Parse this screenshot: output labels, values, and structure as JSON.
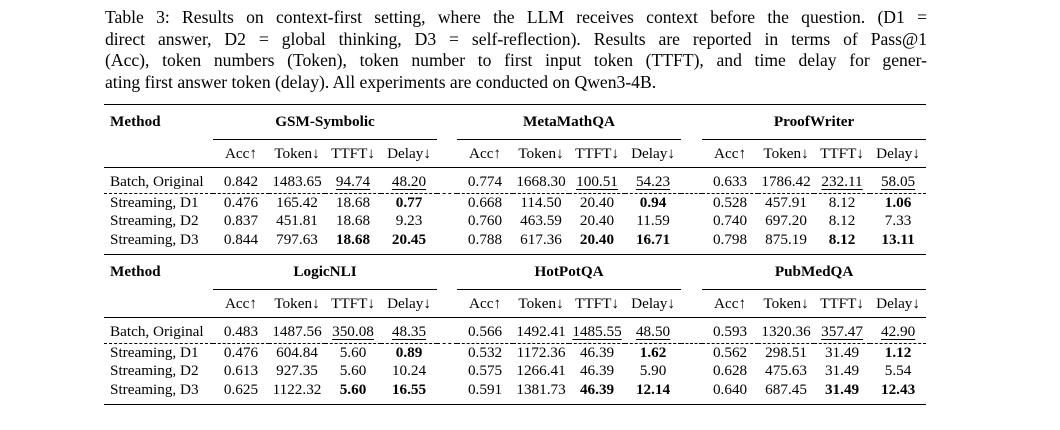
{
  "caption": {
    "lines": [
      "Table 3: Results on context-first setting, where the LLM receives context before the question. (D1 =",
      "direct answer, D2 = global thinking, D3 = self-reflection). Results are reported in terms of Pass@1",
      "(Acc), token numbers (Token), token number to first input token (TTFT), and time delay for gener-",
      "ating first answer token (delay). All experiments are conducted on Qwen3-4B."
    ]
  },
  "tables": [
    {
      "method_label": "Method",
      "groups": [
        "GSM-Symbolic",
        "MetaMathQA",
        "ProofWriter"
      ],
      "metric_headers": [
        "Acc↑",
        "Token↓",
        "TTFT↓",
        "Delay↓"
      ],
      "rows": [
        {
          "method": "Batch, Original",
          "cells": [
            {
              "v": "0.842"
            },
            {
              "v": "1483.65"
            },
            {
              "v": "94.74",
              "u": true
            },
            {
              "v": "48.20",
              "u": true
            },
            {
              "v": "0.774"
            },
            {
              "v": "1668.30"
            },
            {
              "v": "100.51",
              "u": true
            },
            {
              "v": "54.23",
              "u": true
            },
            {
              "v": "0.633"
            },
            {
              "v": "1786.42"
            },
            {
              "v": "232.11",
              "u": true
            },
            {
              "v": "58.05",
              "u": true
            }
          ]
        },
        {
          "method": "Streaming, D1",
          "cells": [
            {
              "v": "0.476"
            },
            {
              "v": "165.42"
            },
            {
              "v": "18.68"
            },
            {
              "v": "0.77",
              "b": true
            },
            {
              "v": "0.668"
            },
            {
              "v": "114.50"
            },
            {
              "v": "20.40"
            },
            {
              "v": "0.94",
              "b": true
            },
            {
              "v": "0.528"
            },
            {
              "v": "457.91"
            },
            {
              "v": "8.12"
            },
            {
              "v": "1.06",
              "b": true
            }
          ]
        },
        {
          "method": "Streaming, D2",
          "cells": [
            {
              "v": "0.837"
            },
            {
              "v": "451.81"
            },
            {
              "v": "18.68"
            },
            {
              "v": "9.23"
            },
            {
              "v": "0.760"
            },
            {
              "v": "463.59"
            },
            {
              "v": "20.40"
            },
            {
              "v": "11.59"
            },
            {
              "v": "0.740"
            },
            {
              "v": "697.20"
            },
            {
              "v": "8.12"
            },
            {
              "v": "7.33"
            }
          ]
        },
        {
          "method": "Streaming, D3",
          "cells": [
            {
              "v": "0.844"
            },
            {
              "v": "797.63"
            },
            {
              "v": "18.68",
              "b": true
            },
            {
              "v": "20.45",
              "b": true
            },
            {
              "v": "0.788"
            },
            {
              "v": "617.36"
            },
            {
              "v": "20.40",
              "b": true
            },
            {
              "v": "16.71",
              "b": true
            },
            {
              "v": "0.798"
            },
            {
              "v": "875.19"
            },
            {
              "v": "8.12",
              "b": true
            },
            {
              "v": "13.11",
              "b": true
            }
          ]
        }
      ]
    },
    {
      "method_label": "Method",
      "groups": [
        "LogicNLI",
        "HotPotQA",
        "PubMedQA"
      ],
      "metric_headers": [
        "Acc↑",
        "Token↓",
        "TTFT↓",
        "Delay↓"
      ],
      "rows": [
        {
          "method": "Batch, Original",
          "cells": [
            {
              "v": "0.483"
            },
            {
              "v": "1487.56"
            },
            {
              "v": "350.08",
              "u": true
            },
            {
              "v": "48.35",
              "u": true
            },
            {
              "v": "0.566"
            },
            {
              "v": "1492.41"
            },
            {
              "v": "1485.55",
              "u": true
            },
            {
              "v": "48.50",
              "u": true
            },
            {
              "v": "0.593"
            },
            {
              "v": "1320.36"
            },
            {
              "v": "357.47",
              "u": true
            },
            {
              "v": "42.90",
              "u": true
            }
          ]
        },
        {
          "method": "Streaming, D1",
          "cells": [
            {
              "v": "0.476"
            },
            {
              "v": "604.84"
            },
            {
              "v": "5.60"
            },
            {
              "v": "0.89",
              "b": true
            },
            {
              "v": "0.532"
            },
            {
              "v": "1172.36"
            },
            {
              "v": "46.39"
            },
            {
              "v": "1.62",
              "b": true
            },
            {
              "v": "0.562"
            },
            {
              "v": "298.51"
            },
            {
              "v": "31.49"
            },
            {
              "v": "1.12",
              "b": true
            }
          ]
        },
        {
          "method": "Streaming, D2",
          "cells": [
            {
              "v": "0.613"
            },
            {
              "v": "927.35"
            },
            {
              "v": "5.60"
            },
            {
              "v": "10.24"
            },
            {
              "v": "0.575"
            },
            {
              "v": "1266.41"
            },
            {
              "v": "46.39"
            },
            {
              "v": "5.90"
            },
            {
              "v": "0.628"
            },
            {
              "v": "475.63"
            },
            {
              "v": "31.49"
            },
            {
              "v": "5.54"
            }
          ]
        },
        {
          "method": "Streaming, D3",
          "cells": [
            {
              "v": "0.625"
            },
            {
              "v": "1122.32"
            },
            {
              "v": "5.60",
              "b": true
            },
            {
              "v": "16.55",
              "b": true
            },
            {
              "v": "0.591"
            },
            {
              "v": "1381.73"
            },
            {
              "v": "46.39",
              "b": true
            },
            {
              "v": "12.14",
              "b": true
            },
            {
              "v": "0.640"
            },
            {
              "v": "687.45"
            },
            {
              "v": "31.49",
              "b": true
            },
            {
              "v": "12.43",
              "b": true
            }
          ]
        }
      ]
    }
  ]
}
